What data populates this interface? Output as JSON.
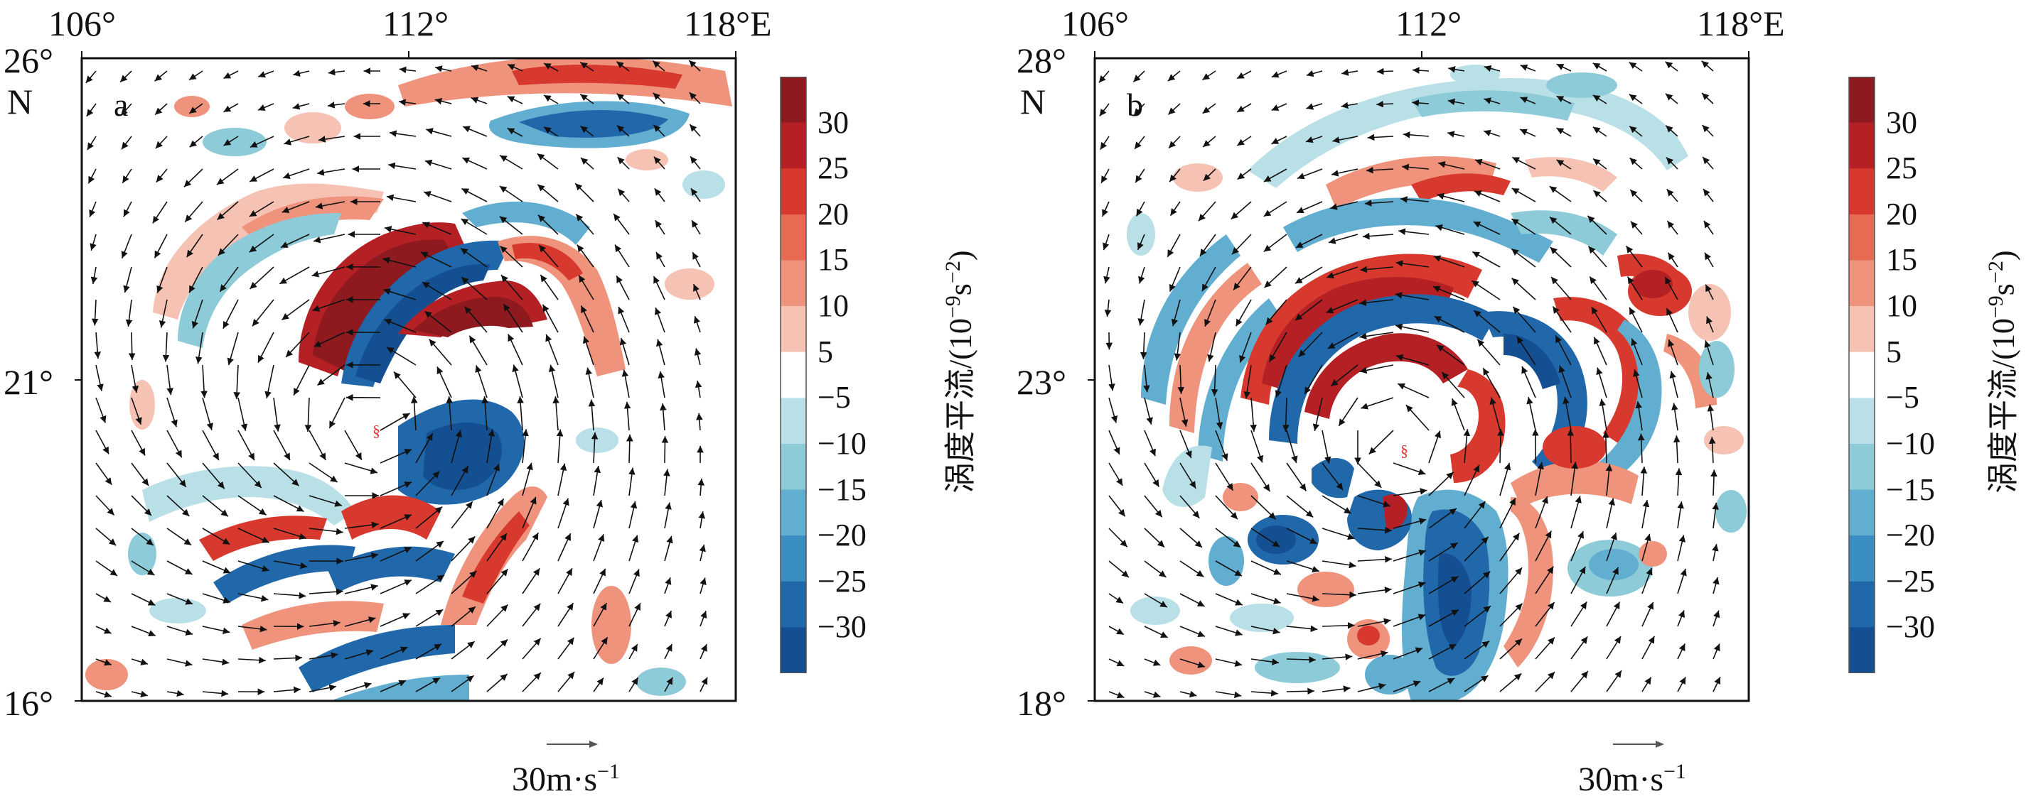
{
  "figure": {
    "colorbar": {
      "ticks": [
        "30",
        "25",
        "20",
        "15",
        "10",
        "5",
        "−5",
        "−10",
        "−15",
        "−20",
        "−25",
        "−30"
      ],
      "title": "涡度平流/(10",
      "title_exp": "−9",
      "title_unit": "s",
      "title_unit_exp": "−2",
      "title_close": ")",
      "colors": [
        "#8e1a1f",
        "#b52025",
        "#d7392f",
        "#e76a52",
        "#ef937c",
        "#f6c2b4",
        "#ffffff",
        "#b9e0e6",
        "#8ecbd9",
        "#62aed0",
        "#3b8ec2",
        "#2068aa",
        "#144f91"
      ]
    },
    "reference_vector": {
      "value": "30m·s",
      "exp": "−1"
    },
    "panels": [
      {
        "id": "a",
        "label": "a",
        "lon_ticks": [
          "106°",
          "112°",
          "118°E"
        ],
        "lat_ticks": [
          "26°",
          "N",
          "21°",
          "16°"
        ],
        "typhoon_symbol": "§",
        "typhoon_color": "#e0312f"
      },
      {
        "id": "b",
        "label": "b",
        "lon_ticks": [
          "106°",
          "112°",
          "118°E"
        ],
        "lat_ticks": [
          "28°",
          "N",
          "23°",
          "18°"
        ],
        "typhoon_symbol": "§",
        "typhoon_color": "#e0312f"
      }
    ]
  }
}
